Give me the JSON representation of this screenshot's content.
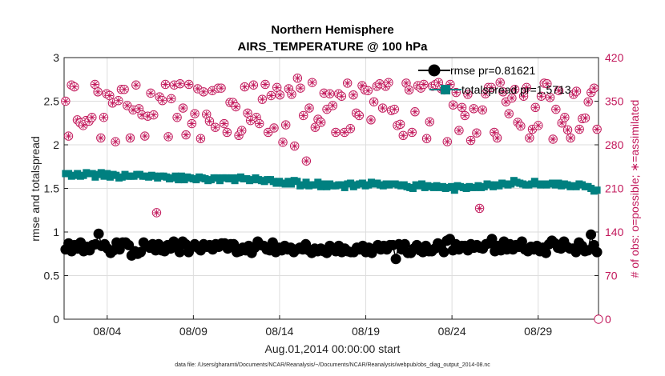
{
  "chart_data": {
    "type": "line",
    "title": "Northern Hemisphere",
    "subtitle": "AIRS_TEMPERATURE @ 100 hPa",
    "xlabel": "Aug.01,2014 00:00:00 start",
    "ylabel_left": "rmse and totalspread",
    "ylabel_right": "# of obs: o=possible; ∗=assimilated",
    "footnote": "data file: /Users/gharamti/Documents/NCAR/Reanalysis/~/Documents/NCAR/Reanalysis/webpub/obs_diag_output_2014-08.nc",
    "x_tick_labels": [
      "08/04",
      "08/09",
      "08/14",
      "08/19",
      "08/24",
      "08/29"
    ],
    "x_tick_positions": [
      3.5,
      8.5,
      13.5,
      18.5,
      23.5,
      28.5
    ],
    "xlim": [
      1.0,
      32.0
    ],
    "ylim_left": [
      0,
      3
    ],
    "yticks_left": [
      "0",
      "0.5",
      "1",
      "1.5",
      "2",
      "2.5",
      "3"
    ],
    "ylim_right": [
      0,
      420
    ],
    "yticks_right": [
      "0",
      "70",
      "140",
      "210",
      "280",
      "350",
      "420"
    ],
    "grid": true,
    "legend_position": "top-right",
    "colors": {
      "rmse": "#000000",
      "spread": "#008080",
      "obs": "#c2185b",
      "grid": "#dddddd",
      "zero_line": "#f4a6c6"
    },
    "series": [
      {
        "name": "rmse pr=0.81621",
        "axis": "left",
        "marker": "circle",
        "values": [
          0.8,
          0.87,
          0.78,
          0.85,
          0.81,
          0.88,
          0.78,
          0.83,
          0.79,
          0.85,
          0.86,
          0.98,
          0.84,
          0.86,
          0.81,
          0.76,
          0.79,
          0.88,
          0.8,
          0.88,
          0.88,
          0.85,
          0.73,
          0.78,
          0.75,
          0.77,
          0.88,
          0.84,
          0.82,
          0.86,
          0.79,
          0.86,
          0.79,
          0.78,
          0.85,
          0.81,
          0.89,
          0.82,
          0.77,
          0.89,
          0.86,
          0.77,
          0.83,
          0.86,
          0.82,
          0.79,
          0.86,
          0.83,
          0.85,
          0.8,
          0.86,
          0.83,
          0.87,
          0.87,
          0.81,
          0.86,
          0.86,
          0.77,
          0.78,
          0.82,
          0.79,
          0.84,
          0.76,
          0.82,
          0.89,
          0.85,
          0.84,
          0.8,
          0.79,
          0.88,
          0.77,
          0.82,
          0.79,
          0.84,
          0.8,
          0.82,
          0.77,
          0.8,
          0.82,
          0.8,
          0.86,
          0.79,
          0.76,
          0.81,
          0.78,
          0.81,
          0.78,
          0.76,
          0.84,
          0.8,
          0.78,
          0.84,
          0.77,
          0.81,
          0.78,
          0.77,
          0.77,
          0.82,
          0.8,
          0.84,
          0.77,
          0.82,
          0.76,
          0.81,
          0.85,
          0.8,
          0.84,
          0.8,
          0.85,
          0.85,
          0.69,
          0.86,
          0.8,
          0.86,
          0.76,
          0.76,
          0.81,
          0.85,
          0.79,
          0.77,
          0.84,
          0.78,
          0.78,
          0.81,
          0.87,
          0.82,
          0.77,
          0.9,
          0.92,
          0.79,
          0.86,
          0.8,
          0.84,
          0.84,
          0.79,
          0.86,
          0.82,
          0.85,
          0.82,
          0.81,
          0.86,
          0.87,
          0.92,
          0.78,
          0.84,
          0.79,
          0.89,
          0.8,
          0.86,
          0.8,
          0.85,
          0.83,
          0.89,
          0.8,
          0.78,
          0.83,
          0.8,
          0.84,
          0.78,
          0.82,
          0.76,
          0.86,
          0.9,
          0.87,
          0.82,
          0.81,
          0.89,
          0.83,
          0.81,
          0.81,
          0.77,
          0.88,
          0.84,
          0.78,
          0.79,
          0.97,
          0.85,
          0.77
        ]
      },
      {
        "name": "totalspread pr=1.5713",
        "axis": "left",
        "marker": "square",
        "values": [
          1.67,
          1.67,
          1.64,
          1.65,
          1.67,
          1.64,
          1.65,
          1.68,
          1.67,
          1.67,
          1.63,
          1.66,
          1.68,
          1.64,
          1.67,
          1.63,
          1.66,
          1.65,
          1.62,
          1.63,
          1.66,
          1.64,
          1.64,
          1.64,
          1.66,
          1.66,
          1.64,
          1.64,
          1.63,
          1.65,
          1.64,
          1.62,
          1.64,
          1.64,
          1.63,
          1.61,
          1.62,
          1.64,
          1.6,
          1.64,
          1.6,
          1.63,
          1.62,
          1.61,
          1.6,
          1.63,
          1.62,
          1.61,
          1.59,
          1.6,
          1.62,
          1.62,
          1.59,
          1.62,
          1.62,
          1.61,
          1.62,
          1.59,
          1.62,
          1.63,
          1.61,
          1.61,
          1.59,
          1.6,
          1.62,
          1.6,
          1.59,
          1.58,
          1.6,
          1.6,
          1.58,
          1.56,
          1.58,
          1.56,
          1.55,
          1.58,
          1.55,
          1.59,
          1.58,
          1.53,
          1.54,
          1.57,
          1.53,
          1.54,
          1.54,
          1.57,
          1.52,
          1.55,
          1.52,
          1.55,
          1.53,
          1.53,
          1.54,
          1.54,
          1.51,
          1.55,
          1.56,
          1.52,
          1.54,
          1.55,
          1.56,
          1.53,
          1.54,
          1.57,
          1.55,
          1.56,
          1.54,
          1.53,
          1.55,
          1.54,
          1.55,
          1.55,
          1.54,
          1.53,
          1.54,
          1.52,
          1.51,
          1.5,
          1.54,
          1.53,
          1.55,
          1.51,
          1.53,
          1.52,
          1.51,
          1.53,
          1.51,
          1.52,
          1.5,
          1.51,
          1.52,
          1.48,
          1.53,
          1.52,
          1.51,
          1.5,
          1.52,
          1.51,
          1.51,
          1.53,
          1.51,
          1.52,
          1.55,
          1.54,
          1.52,
          1.54,
          1.53,
          1.56,
          1.55,
          1.54,
          1.55,
          1.59,
          1.57,
          1.56,
          1.55,
          1.54,
          1.54,
          1.55,
          1.58,
          1.55,
          1.54,
          1.55,
          1.54,
          1.55,
          1.56,
          1.54,
          1.56,
          1.53,
          1.55,
          1.54,
          1.52,
          1.53,
          1.52,
          1.55,
          1.54,
          1.52,
          1.52,
          1.5,
          1.47,
          1.48
        ]
      },
      {
        "name": "",
        "axis": "right",
        "marker": "circle-asterisk",
        "values": [
          350,
          294,
          376,
          373,
          320,
          315,
          311,
          319,
          318,
          324,
          377,
          365,
          291,
          324,
          362,
          359,
          347,
          285,
          351,
          369,
          369,
          343,
          291,
          336,
          376,
          338,
          328,
          294,
          326,
          363,
          328,
          171,
          357,
          351,
          377,
          293,
          354,
          376,
          324,
          378,
          339,
          296,
          377,
          314,
          330,
          370,
          290,
          365,
          329,
          318,
          367,
          308,
          371,
          371,
          314,
          300,
          348,
          348,
          341,
          295,
          303,
          373,
          331,
          319,
          376,
          324,
          314,
          353,
          377,
          300,
          359,
          307,
          372,
          360,
          284,
          312,
          370,
          361,
          278,
          387,
          371,
          327,
          254,
          339,
          380,
          308,
          321,
          316,
          363,
          337,
          362,
          343,
          300,
          362,
          358,
          300,
          379,
          306,
          360,
          331,
          327,
          375,
          368,
          367,
          320,
          349,
          374,
          378,
          339,
          374,
          380,
          335,
          337,
          311,
          313,
          295,
          379,
          368,
          300,
          333,
          375,
          371,
          377,
          290,
          317,
          374,
          377,
          380,
          370,
          368,
          285,
          377,
          344,
          364,
          303,
          340,
          327,
          361,
          287,
          338,
          299,
          178,
          336,
          362,
          372,
          372,
          300,
          291,
          380,
          365,
          349,
          330,
          355,
          369,
          316,
          310,
          358,
          372,
          291,
          305,
          340,
          311,
          358,
          379,
          378,
          356,
          289,
          337,
          367,
          315,
          324,
          304,
          291,
          361,
          366,
          305,
          322,
          323,
          349,
          364,
          371,
          305
        ]
      }
    ]
  }
}
